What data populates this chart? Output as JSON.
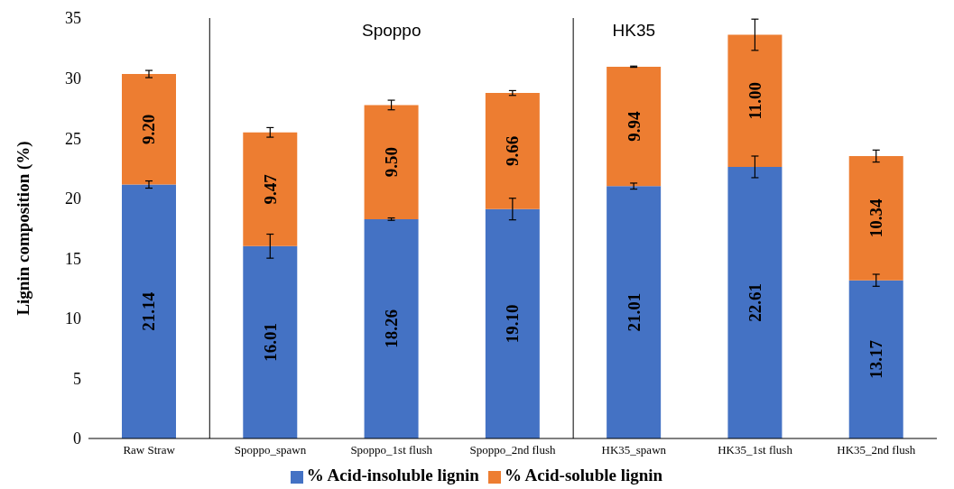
{
  "chart_data": {
    "type": "bar",
    "stacked": true,
    "ylabel": "Lignin composition (%)",
    "categories": [
      "Raw Straw",
      "Spoppo_spawn",
      "Spoppo_1st flush",
      "Spoppo_2nd flush",
      "HK35_spawn",
      "HK35_1st flush",
      "HK35_2nd flush"
    ],
    "series": [
      {
        "name": "% Acid-insoluble lignin",
        "color": "#4472c4",
        "values": [
          21.14,
          16.01,
          18.26,
          19.1,
          21.01,
          22.61,
          13.17
        ],
        "value_labels": [
          "21.14",
          "16.01",
          "18.26",
          "19.10",
          "21.01",
          "22.61",
          "13.17"
        ],
        "errors": [
          0.3,
          1.0,
          0.1,
          0.9,
          0.25,
          0.9,
          0.5
        ]
      },
      {
        "name": "% Acid-soluble lignin",
        "color": "#ed7d31",
        "values": [
          9.2,
          9.47,
          9.5,
          9.66,
          9.94,
          11.0,
          10.34
        ],
        "value_labels": [
          "9.20",
          "9.47",
          "9.50",
          "9.66",
          "9.94",
          "11.00",
          "10.34"
        ],
        "errors": [
          0.3,
          0.4,
          0.4,
          0.2,
          0.05,
          1.3,
          0.5
        ]
      }
    ],
    "ylim": [
      0,
      35
    ],
    "yticks": [
      0,
      5,
      10,
      15,
      20,
      25,
      30,
      35
    ],
    "grid": false,
    "legend": "bottom",
    "annotations": [
      "Spoppo",
      "HK35"
    ]
  }
}
